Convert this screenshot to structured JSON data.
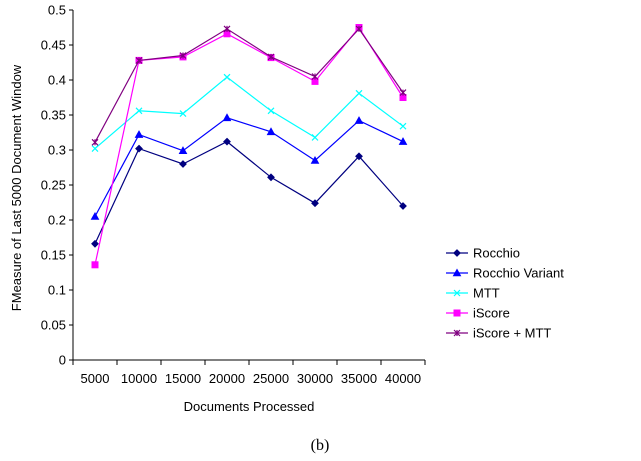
{
  "chart_data": {
    "type": "line",
    "title": "",
    "xlabel": "Documents Processed",
    "ylabel": "FMeasure of Last 5000 Document Window",
    "categories": [
      "5000",
      "10000",
      "15000",
      "20000",
      "25000",
      "30000",
      "35000",
      "40000"
    ],
    "ylim": [
      0,
      0.5
    ],
    "yticks": [
      "0",
      "0.05",
      "0.1",
      "0.15",
      "0.2",
      "0.25",
      "0.3",
      "0.35",
      "0.4",
      "0.45",
      "0.5"
    ],
    "grid": false,
    "legend_position": "bottom-right",
    "caption": "(b)",
    "series": [
      {
        "name": "Rocchio",
        "color": "#000080",
        "marker": "diamond",
        "values": [
          0.166,
          0.302,
          0.28,
          0.312,
          0.261,
          0.224,
          0.291,
          0.22
        ]
      },
      {
        "name": "Rocchio Variant",
        "color": "#0000ff",
        "marker": "triangle",
        "values": [
          0.205,
          0.322,
          0.299,
          0.346,
          0.326,
          0.285,
          0.342,
          0.312
        ]
      },
      {
        "name": "MTT",
        "color": "#00ffff",
        "marker": "x",
        "values": [
          0.302,
          0.356,
          0.352,
          0.404,
          0.356,
          0.318,
          0.381,
          0.334
        ]
      },
      {
        "name": "iScore",
        "color": "#ff00ff",
        "marker": "square",
        "values": [
          0.136,
          0.428,
          0.433,
          0.466,
          0.432,
          0.398,
          0.475,
          0.375
        ]
      },
      {
        "name": "iScore + MTT",
        "color": "#800080",
        "marker": "star",
        "values": [
          0.311,
          0.428,
          0.435,
          0.473,
          0.433,
          0.405,
          0.473,
          0.382
        ]
      }
    ]
  }
}
